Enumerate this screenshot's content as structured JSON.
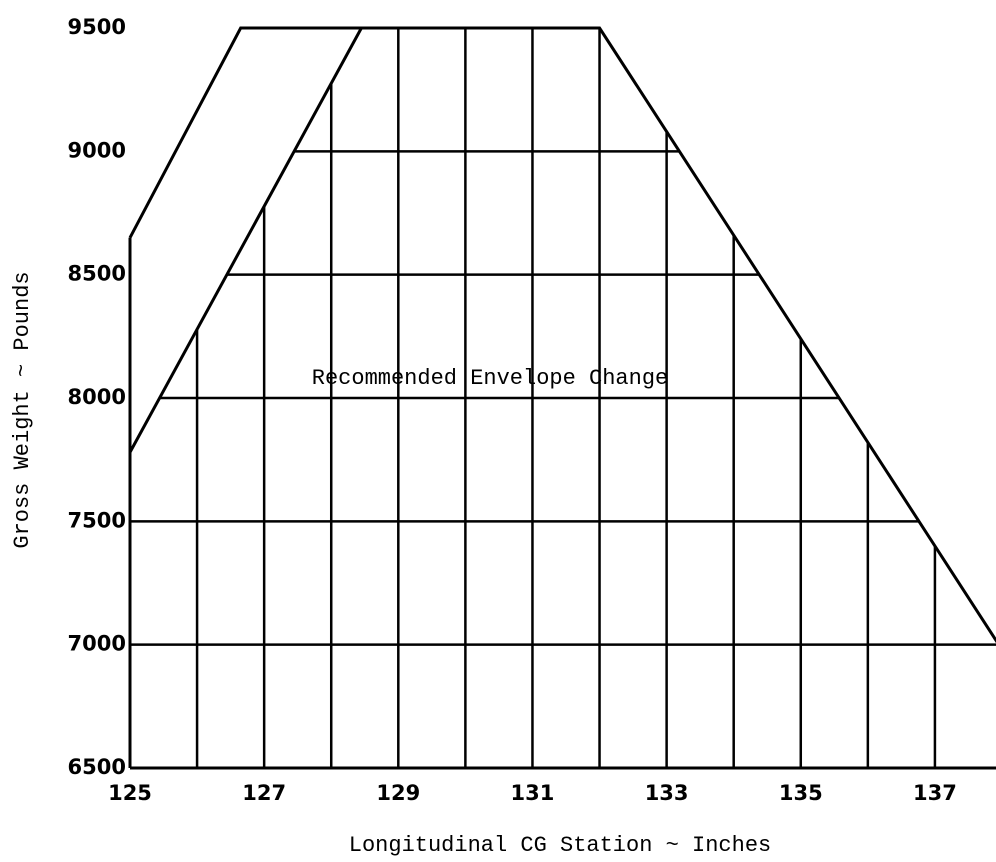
{
  "chart_data": {
    "type": "line",
    "xlabel": "Longitudinal CG Station ~ Inches",
    "ylabel": "Gross Weight ~ Pounds",
    "annotation": "Recommended Envelope Change",
    "xlim": [
      125,
      138
    ],
    "ylim": [
      6500,
      9500
    ],
    "xticks": [
      125,
      127,
      129,
      131,
      133,
      135,
      137
    ],
    "xminorticks": [
      126,
      128,
      130,
      132,
      134,
      136,
      138
    ],
    "yticks": [
      6500,
      7000,
      7500,
      8000,
      8500,
      9000,
      9500
    ],
    "color": "#000000",
    "grid": true,
    "series": [
      {
        "x": [
          125,
          126.65,
          132,
          138
        ],
        "values": [
          8650,
          9500,
          9500,
          6980
        ]
      },
      {
        "x": [
          125,
          128.45
        ],
        "values": [
          7780,
          9500
        ]
      }
    ]
  }
}
